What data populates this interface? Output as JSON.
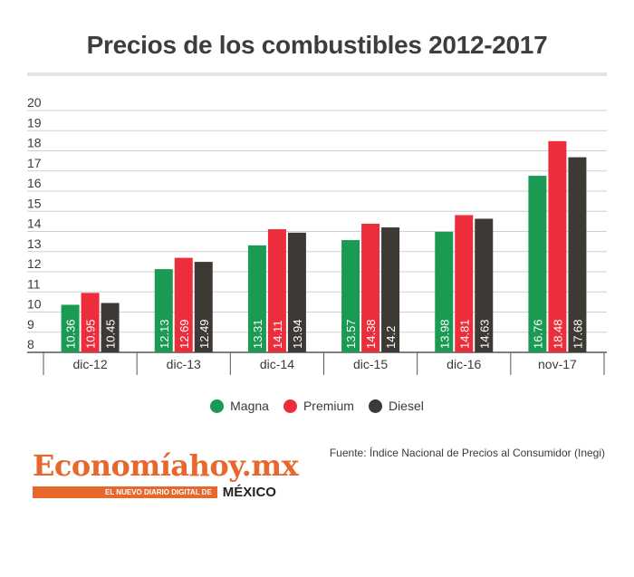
{
  "title": "Precios de los combustibles 2012-2017",
  "legend": [
    {
      "label": "Magna",
      "color": "#1a9a52"
    },
    {
      "label": "Premium",
      "color": "#ec2d3b"
    },
    {
      "label": "Diesel",
      "color": "#3d3934"
    }
  ],
  "source": "Fuente: Índice Nacional de Precios al Consumidor (Inegi)",
  "logo": {
    "name": "Economíahoy.mx",
    "tagline": "EL NUEVO DIARIO DIGITAL DE",
    "country": "MÉXICO"
  },
  "chart_data": {
    "type": "bar",
    "title": "Precios de los combustibles 2012-2017",
    "categories": [
      "dic-12",
      "dic-13",
      "dic-14",
      "dic-15",
      "dic-16",
      "nov-17"
    ],
    "series": [
      {
        "name": "Magna",
        "color": "#1a9a52",
        "values": [
          10.36,
          12.13,
          13.31,
          13.57,
          13.98,
          16.76
        ],
        "labels": [
          "10.36",
          "12.13",
          "13.31",
          "13.57",
          "13.98",
          "16.76"
        ]
      },
      {
        "name": "Premium",
        "color": "#ec2d3b",
        "values": [
          10.95,
          12.69,
          14.11,
          14.38,
          14.81,
          18.48
        ],
        "labels": [
          "10.95",
          "12.69",
          "14.11",
          "14.38",
          "14.81",
          "18.48"
        ]
      },
      {
        "name": "Diesel",
        "color": "#3d3934",
        "values": [
          10.45,
          12.49,
          13.94,
          14.2,
          14.63,
          17.68
        ],
        "labels": [
          "10.45",
          "12.49",
          "13.94",
          "14.2",
          "14.63",
          "17.68"
        ]
      }
    ],
    "yticks": [
      8,
      9,
      10,
      11,
      12,
      13,
      14,
      15,
      16,
      17,
      18,
      19,
      20
    ],
    "ylim": [
      8,
      20
    ],
    "grid": true,
    "legend_position": "bottom"
  }
}
